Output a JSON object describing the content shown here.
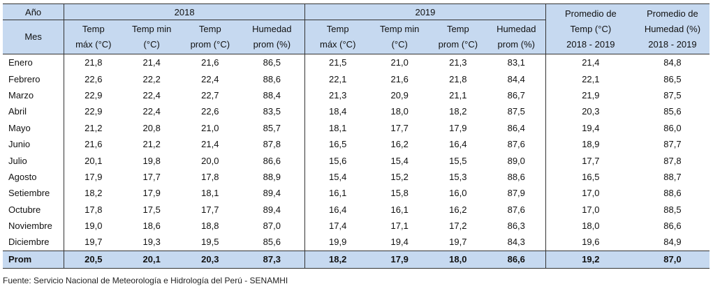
{
  "header": {
    "year_label": "Año",
    "month_label": "Mes",
    "year_2018": "2018",
    "year_2019": "2019",
    "avg_temp_l1": "Promedio de",
    "avg_temp_l2": "Temp (°C)",
    "avg_temp_l3": "2018 - 2019",
    "avg_hum_l1": "Promedio de",
    "avg_hum_l2": "Humedad (%)",
    "avg_hum_l3": "2018 - 2019",
    "col_tmax_l1": "Temp",
    "col_tmax_l2": "máx (°C)",
    "col_tmin_l1": "Temp min",
    "col_tmin_l2": "(°C)",
    "col_tprom_l1": "Temp",
    "col_tprom_l2": "prom (°C)",
    "col_hum_l1": "Humedad",
    "col_hum_l2": "prom (%)"
  },
  "rows": [
    [
      "Enero",
      "21,8",
      "21,4",
      "21,6",
      "86,5",
      "21,5",
      "21,0",
      "21,3",
      "83,1",
      "21,4",
      "84,8"
    ],
    [
      "Febrero",
      "22,6",
      "22,2",
      "22,4",
      "88,6",
      "22,1",
      "21,6",
      "21,8",
      "84,4",
      "22,1",
      "86,5"
    ],
    [
      "Marzo",
      "22,9",
      "22,4",
      "22,7",
      "88,4",
      "21,3",
      "20,9",
      "21,1",
      "86,7",
      "21,9",
      "87,5"
    ],
    [
      "Abril",
      "22,9",
      "22,4",
      "22,6",
      "83,5",
      "18,4",
      "18,0",
      "18,2",
      "87,5",
      "20,3",
      "85,6"
    ],
    [
      "Mayo",
      "21,2",
      "20,8",
      "21,0",
      "85,7",
      "18,1",
      "17,7",
      "17,9",
      "86,4",
      "19,4",
      "86,0"
    ],
    [
      "Junio",
      "21,6",
      "21,2",
      "21,4",
      "87,8",
      "16,5",
      "16,2",
      "16,4",
      "87,6",
      "18,9",
      "87,7"
    ],
    [
      "Julio",
      "20,1",
      "19,8",
      "20,0",
      "86,6",
      "15,6",
      "15,4",
      "15,5",
      "89,0",
      "17,7",
      "87,8"
    ],
    [
      "Agosto",
      "17,9",
      "17,7",
      "17,8",
      "88,9",
      "15,4",
      "15,2",
      "15,3",
      "88,6",
      "16,5",
      "88,7"
    ],
    [
      "Setiembre",
      "18,2",
      "17,9",
      "18,1",
      "89,4",
      "16,1",
      "15,8",
      "16,0",
      "87,9",
      "17,0",
      "88,6"
    ],
    [
      "Octubre",
      "17,8",
      "17,5",
      "17,7",
      "89,4",
      "16,4",
      "16,1",
      "16,2",
      "87,6",
      "17,0",
      "88,5"
    ],
    [
      "Noviembre",
      "19,0",
      "18,6",
      "18,8",
      "87,0",
      "17,4",
      "17,1",
      "17,2",
      "86,3",
      "18,0",
      "86,6"
    ],
    [
      "Diciembre",
      "19,7",
      "19,3",
      "19,5",
      "85,6",
      "19,9",
      "19,4",
      "19,7",
      "84,3",
      "19,6",
      "84,9"
    ]
  ],
  "prom_row": [
    "Prom",
    "20,5",
    "20,1",
    "20,3",
    "87,3",
    "18,2",
    "17,9",
    "18,0",
    "86,6",
    "19,2",
    "87,0"
  ],
  "footnote": "Fuente: Servicio Nacional de Meteorología e Hidrología del Perú - SENAMHI",
  "colors": {
    "header_bg": "#c6d9f0",
    "rule": "#333333"
  }
}
